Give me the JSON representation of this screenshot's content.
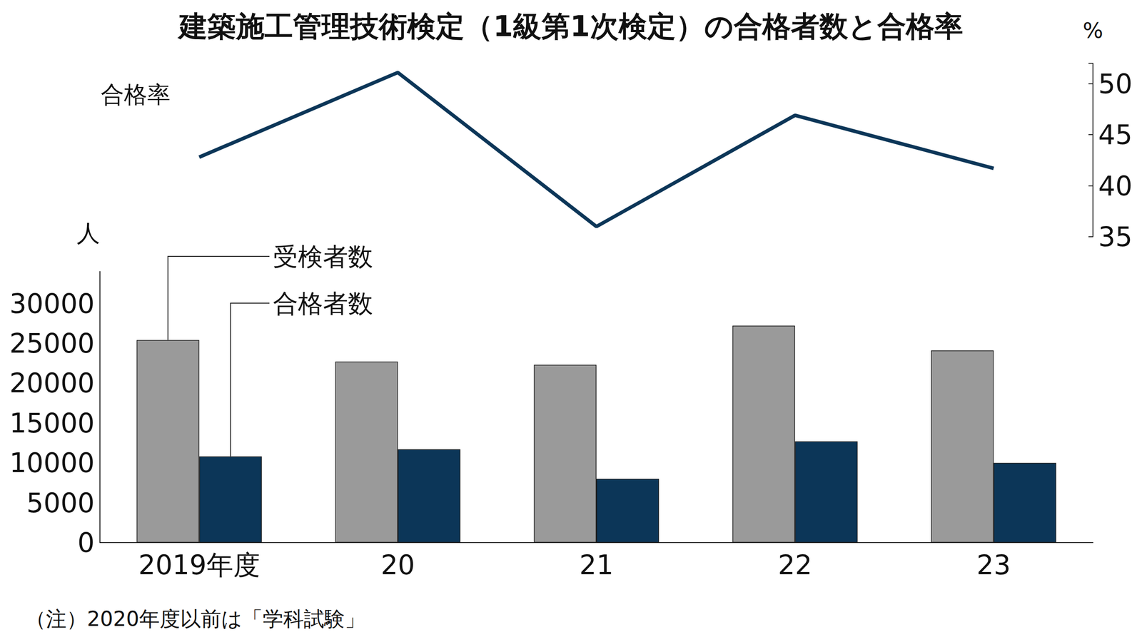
{
  "chart_data": {
    "type": "bar",
    "title": "建築施工管理技術検定（1級第1次検定）の合格者数と合格率",
    "categories": [
      "2019年度",
      "20",
      "21",
      "22",
      "23"
    ],
    "series": [
      {
        "name": "受検者数",
        "type": "bar",
        "color": "#9a9a9a",
        "values": [
          25400,
          22700,
          22300,
          27200,
          24100
        ]
      },
      {
        "name": "合格者数",
        "type": "bar",
        "color": "#0c3658",
        "values": [
          10800,
          11700,
          8000,
          12700,
          10000
        ]
      },
      {
        "name": "合格率",
        "type": "line",
        "color": "#0c3658",
        "axis": "y2",
        "values": [
          42.8,
          51.1,
          36.0,
          46.9,
          41.7
        ]
      }
    ],
    "ylim": [
      0,
      34000
    ],
    "yticks": [
      0,
      5000,
      10000,
      15000,
      20000,
      25000,
      30000
    ],
    "y2lim": [
      35,
      52
    ],
    "y2ticks": [
      35,
      40,
      45,
      50
    ],
    "ylabel": "人",
    "y2label": "%",
    "note": "（注）2020年度以前は「学科試験」",
    "grid": false
  }
}
